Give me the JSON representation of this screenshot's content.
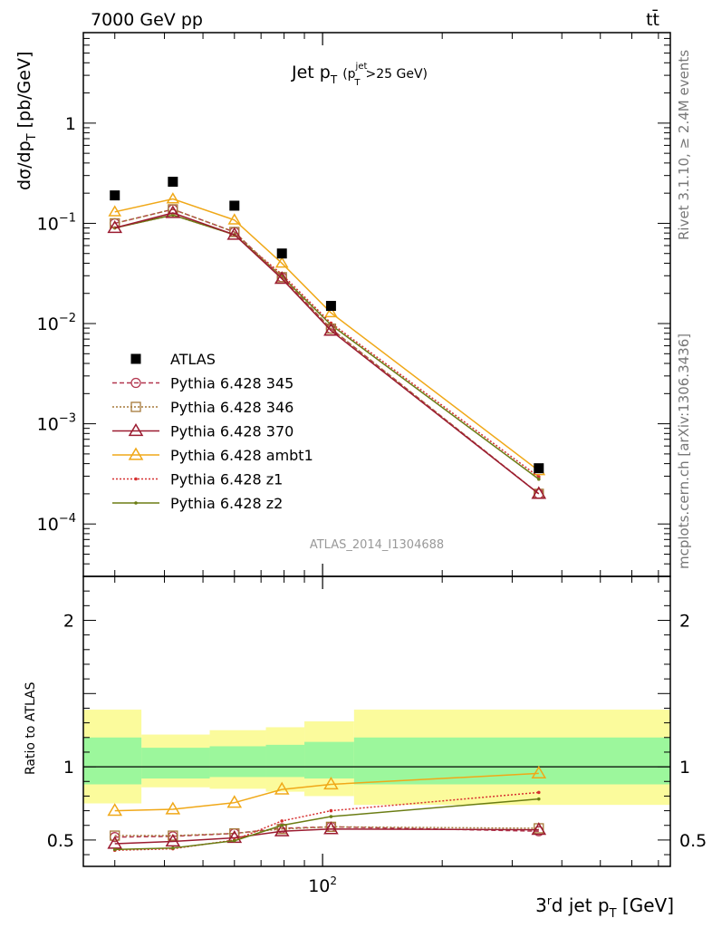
{
  "header": {
    "left": "7000 GeV pp",
    "right": "tt̄"
  },
  "side_text": {
    "rivet": "Rivet 3.1.10, ≥ 2.4M events",
    "mcplots": "mcplots.cern.ch [arXiv:1306.3436]"
  },
  "plot_title": {
    "main": "Jet p",
    "sub": "T",
    "cut": "(p",
    "cut_sub": "T",
    "cut_sup": "jet",
    "cut_rest": ">25 GeV)"
  },
  "analysis_id": "ATLAS_2014_I1304688",
  "colors": {
    "ATLAS": "#000000",
    "345": "#b3364f",
    "346": "#a6793a",
    "370": "#9b1b30",
    "ambt1": "#f0a818",
    "z1": "#d63030",
    "z2": "#6b7d14",
    "band_inner": "#9cf79c",
    "band_outer": "#fbfb9c"
  },
  "chart_data": [
    {
      "type": "line",
      "title": "Jet pT (pT jet >25 GeV)",
      "xlabel": "3rd jet pT [GeV]",
      "ylabel": "dσ/dpT [pb/GeV]",
      "xscale": "log",
      "yscale": "log",
      "xlim": [
        25,
        750
      ],
      "ylim": [
        3e-05,
        8
      ],
      "y_ticks": [
        "10⁻⁴",
        "10⁻³",
        "10⁻²",
        "10⁻¹",
        "1"
      ],
      "x_ticks": [
        "10²"
      ],
      "legend_position": "lower-left",
      "x": [
        30,
        42,
        60,
        79,
        105,
        350
      ],
      "series": [
        {
          "name": "ATLAS",
          "style": "square",
          "values": [
            0.19,
            0.26,
            0.15,
            0.05,
            0.015,
            0.00036
          ]
        },
        {
          "name": "Pythia 6.428 345",
          "style": "circle-dashed",
          "values": [
            0.1,
            0.138,
            0.082,
            0.029,
            0.0089,
            0.0002
          ]
        },
        {
          "name": "Pythia 6.428 346",
          "style": "square-dotted",
          "values": [
            0.1,
            0.138,
            0.082,
            0.029,
            0.0089,
            0.0002
          ]
        },
        {
          "name": "Pythia 6.428 370",
          "style": "triangle-solid",
          "values": [
            0.09,
            0.127,
            0.077,
            0.028,
            0.0085,
            0.0002
          ]
        },
        {
          "name": "Pythia 6.428 ambt1",
          "style": "triangle-solid-light",
          "values": [
            0.13,
            0.175,
            0.108,
            0.04,
            0.0128,
            0.00034
          ]
        },
        {
          "name": "Pythia 6.428 z1",
          "style": "dot-dotted",
          "values": [
            0.09,
            0.121,
            0.077,
            0.031,
            0.0101,
            0.000295
          ]
        },
        {
          "name": "Pythia 6.428 z2",
          "style": "dot-solid",
          "values": [
            0.09,
            0.121,
            0.077,
            0.0295,
            0.0097,
            0.00028
          ]
        }
      ]
    },
    {
      "type": "line",
      "ylabel": "Ratio to ATLAS",
      "xscale": "log",
      "xlim": [
        25,
        750
      ],
      "ylim": [
        0.32,
        2.3
      ],
      "y_ticks": [
        "0.5",
        "1",
        "2"
      ],
      "x": [
        30,
        42,
        60,
        79,
        105,
        350
      ],
      "bands": {
        "bins": [
          [
            25,
            35
          ],
          [
            35,
            52
          ],
          [
            52,
            72
          ],
          [
            72,
            90
          ],
          [
            90,
            120
          ],
          [
            120,
            750
          ]
        ],
        "inner_low": [
          0.88,
          0.92,
          0.93,
          0.93,
          0.92,
          0.88
        ],
        "inner_high": [
          1.2,
          1.13,
          1.14,
          1.15,
          1.17,
          1.2
        ],
        "outer_low": [
          0.75,
          0.86,
          0.85,
          0.83,
          0.8,
          0.74
        ],
        "outer_high": [
          1.39,
          1.22,
          1.25,
          1.27,
          1.31,
          1.39
        ]
      },
      "series": [
        {
          "name": "Pythia 6.428 345",
          "values": [
            0.52,
            0.525,
            0.545,
            0.58,
            0.59,
            0.56
          ]
        },
        {
          "name": "Pythia 6.428 346",
          "values": [
            0.53,
            0.53,
            0.545,
            0.575,
            0.59,
            0.58
          ]
        },
        {
          "name": "Pythia 6.428 370",
          "values": [
            0.475,
            0.49,
            0.515,
            0.56,
            0.575,
            0.57
          ]
        },
        {
          "name": "Pythia 6.428 ambt1",
          "values": [
            0.7,
            0.71,
            0.755,
            0.845,
            0.88,
            0.955
          ]
        },
        {
          "name": "Pythia 6.428 z1",
          "values": [
            0.43,
            0.44,
            0.5,
            0.63,
            0.7,
            0.825
          ]
        },
        {
          "name": "Pythia 6.428 z2",
          "values": [
            0.435,
            0.445,
            0.495,
            0.6,
            0.66,
            0.78
          ]
        }
      ]
    }
  ]
}
